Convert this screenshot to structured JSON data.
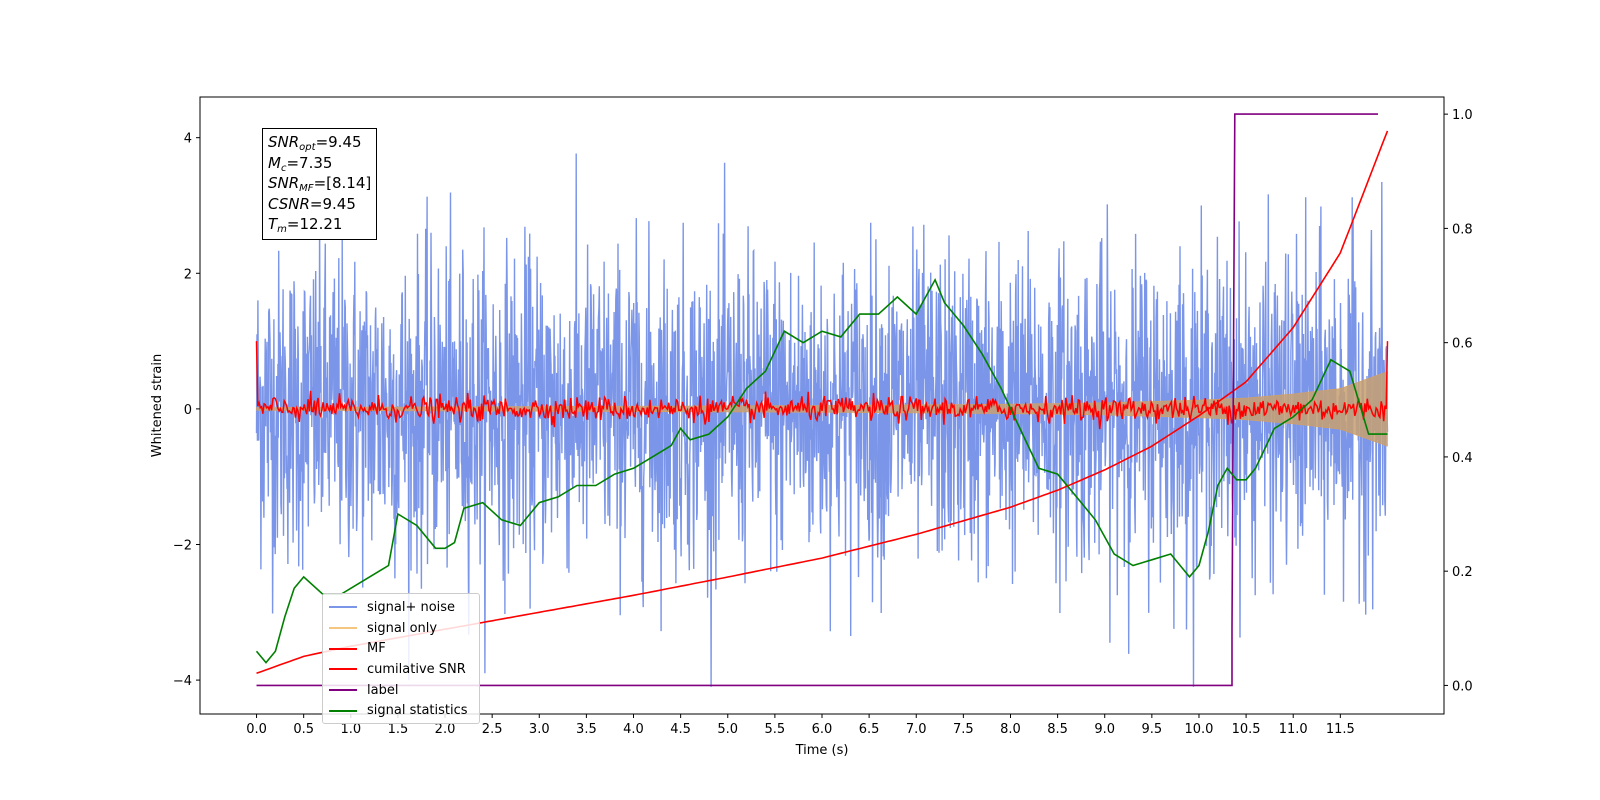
{
  "chart_data": {
    "type": "line",
    "xlabel": "Time (s)",
    "ylabel": "Whitened strain",
    "xlim": [
      -0.6,
      12.6
    ],
    "ylim": [
      -4.5,
      4.6
    ],
    "y2lim": [
      -0.05,
      1.03
    ],
    "xticks": [
      "0.0",
      "0.5",
      "1.0",
      "1.5",
      "2.0",
      "2.5",
      "3.0",
      "3.5",
      "4.0",
      "4.5",
      "5.0",
      "5.5",
      "6.0",
      "6.5",
      "7.0",
      "7.5",
      "8.0",
      "8.5",
      "9.0",
      "9.5",
      "10.0",
      "10.5",
      "11.0",
      "11.5"
    ],
    "yticks": [
      "−4",
      "−2",
      "0",
      "2",
      "4"
    ],
    "y2ticks": [
      "0.0",
      "0.2",
      "0.4",
      "0.6",
      "0.8",
      "1.0"
    ],
    "annotation": {
      "snr_opt": {
        "sym": "SNR",
        "sub": "opt",
        "val": "=9.45"
      },
      "mc": {
        "sym": "M",
        "sub": "c",
        "val": "=7.35"
      },
      "snr_mf": {
        "sym": "SNR",
        "sub": "MF",
        "val": "=[8.14]"
      },
      "csnr": {
        "sym": "CSNR",
        "sub": "",
        "val": "=9.45"
      },
      "tm": {
        "sym": "T",
        "sub": "m",
        "val": "=12.21"
      }
    },
    "legend": {
      "placement": "lower-left",
      "items": [
        {
          "label": "signal+ noise",
          "color": "#7b96e8"
        },
        {
          "label": "signal only",
          "color": "#f5c77e"
        },
        {
          "label": "MF",
          "color": "#ff0000"
        },
        {
          "label": "cumilative SNR",
          "color": "#ff0000"
        },
        {
          "label": "label",
          "color": "#800080"
        },
        {
          "label": "signal statistics",
          "color": "#008000"
        }
      ]
    },
    "series": [
      {
        "name": "signal+ noise",
        "axis": "left",
        "color": "#7b96e8",
        "style": "noise",
        "x_range": [
          0,
          12.0
        ],
        "approx_amplitude": 3.3
      },
      {
        "name": "signal only",
        "axis": "left",
        "color": "#c8a070",
        "style": "chirp-envelope",
        "x": [
          0,
          2,
          4,
          6,
          8,
          9,
          10,
          10.5,
          11,
          11.5,
          12.0
        ],
        "y": [
          0.02,
          0.03,
          0.04,
          0.05,
          0.07,
          0.09,
          0.13,
          0.16,
          0.22,
          0.3,
          0.55
        ]
      },
      {
        "name": "MF",
        "axis": "left",
        "color": "#ff0000",
        "style": "noise",
        "x_range": [
          0,
          12.0
        ],
        "approx_amplitude": 0.15
      },
      {
        "name": "cumilative SNR",
        "axis": "left",
        "color": "#ff0000",
        "x": [
          0,
          0.5,
          1,
          2,
          3,
          4,
          5,
          6,
          7,
          8,
          8.5,
          9,
          9.5,
          10,
          10.5,
          11,
          11.5,
          12.0
        ],
        "y": [
          -3.9,
          -3.65,
          -3.5,
          -3.25,
          -3.0,
          -2.75,
          -2.48,
          -2.2,
          -1.85,
          -1.45,
          -1.2,
          -0.9,
          -0.55,
          -0.1,
          0.4,
          1.2,
          2.3,
          4.1
        ]
      },
      {
        "name": "label",
        "axis": "right",
        "color": "#800080",
        "x": [
          0,
          10.35,
          10.35,
          10.38,
          11.9
        ],
        "y": [
          0,
          0,
          0.1,
          1.0,
          1.0
        ]
      },
      {
        "name": "signal statistics",
        "axis": "right",
        "color": "#008000",
        "x": [
          0,
          0.1,
          0.2,
          0.3,
          0.4,
          0.5,
          0.7,
          0.9,
          1.0,
          1.2,
          1.4,
          1.5,
          1.7,
          1.9,
          2.0,
          2.1,
          2.2,
          2.4,
          2.6,
          2.8,
          3.0,
          3.2,
          3.4,
          3.6,
          3.8,
          4.0,
          4.2,
          4.4,
          4.5,
          4.6,
          4.8,
          5.0,
          5.2,
          5.4,
          5.6,
          5.8,
          6.0,
          6.2,
          6.4,
          6.6,
          6.8,
          7.0,
          7.2,
          7.3,
          7.5,
          7.7,
          7.9,
          8.1,
          8.3,
          8.5,
          8.7,
          8.9,
          9.1,
          9.3,
          9.5,
          9.7,
          9.9,
          10.0,
          10.1,
          10.2,
          10.3,
          10.4,
          10.5,
          10.6,
          10.8,
          11.0,
          11.2,
          11.4,
          11.5,
          11.6,
          11.8,
          12.0
        ],
        "y": [
          0.06,
          0.04,
          0.06,
          0.12,
          0.17,
          0.19,
          0.16,
          0.16,
          0.17,
          0.19,
          0.21,
          0.3,
          0.28,
          0.24,
          0.24,
          0.25,
          0.31,
          0.32,
          0.29,
          0.28,
          0.32,
          0.33,
          0.35,
          0.35,
          0.37,
          0.38,
          0.4,
          0.42,
          0.45,
          0.43,
          0.44,
          0.47,
          0.52,
          0.55,
          0.62,
          0.6,
          0.62,
          0.61,
          0.65,
          0.65,
          0.68,
          0.65,
          0.71,
          0.67,
          0.63,
          0.58,
          0.52,
          0.45,
          0.38,
          0.37,
          0.33,
          0.29,
          0.23,
          0.21,
          0.22,
          0.23,
          0.19,
          0.21,
          0.27,
          0.35,
          0.38,
          0.36,
          0.36,
          0.38,
          0.45,
          0.47,
          0.5,
          0.57,
          0.56,
          0.55,
          0.44,
          0.44
        ]
      }
    ]
  }
}
